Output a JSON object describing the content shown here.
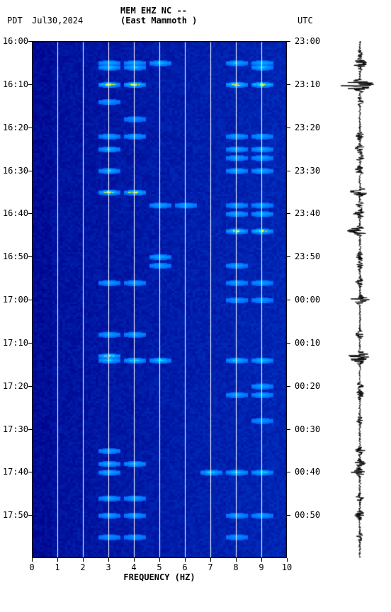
{
  "header": {
    "tz_left": "PDT",
    "date": "Jul30,2024",
    "station": "MEM EHZ NC --",
    "location": "(East Mammoth )",
    "tz_right": "UTC"
  },
  "spectrogram": {
    "type": "heatmap",
    "xlim": [
      0,
      10
    ],
    "ylim_left_minutes": [
      0,
      120
    ],
    "xlabel": "FREQUENCY (HZ)",
    "xticks": [
      0,
      1,
      2,
      3,
      4,
      5,
      6,
      7,
      8,
      9,
      10
    ],
    "left_time_labels": [
      "16:00",
      "16:10",
      "16:20",
      "16:30",
      "16:40",
      "16:50",
      "17:00",
      "17:10",
      "17:20",
      "17:30",
      "17:40",
      "17:50"
    ],
    "right_time_labels": [
      "23:00",
      "23:10",
      "23:20",
      "23:30",
      "23:40",
      "23:50",
      "00:00",
      "00:10",
      "00:20",
      "00:30",
      "00:40",
      "00:50"
    ],
    "background_color": "#0000aa",
    "low_color": "#000088",
    "mid_color": "#0066ff",
    "high_color": "#00ffff",
    "hot_color": "#ffff00",
    "hottest_color": "#ff3300",
    "grid_color": "#ffffff",
    "grid_width": 1,
    "axis_color": "#000000",
    "nx": 10,
    "ny": 120,
    "events": [
      {
        "t": 5,
        "freqs": [
          3,
          4,
          5,
          8,
          9
        ],
        "intensity": 0.6
      },
      {
        "t": 6,
        "freqs": [
          3,
          4,
          9
        ],
        "intensity": 0.7
      },
      {
        "t": 10,
        "freqs": [
          3,
          4,
          8,
          9
        ],
        "intensity": 0.95,
        "hot": true
      },
      {
        "t": 14,
        "freqs": [
          3
        ],
        "intensity": 0.4
      },
      {
        "t": 18,
        "freqs": [
          4
        ],
        "intensity": 0.3
      },
      {
        "t": 22,
        "freqs": [
          3,
          4,
          8,
          9
        ],
        "intensity": 0.5
      },
      {
        "t": 25,
        "freqs": [
          3,
          8,
          9
        ],
        "intensity": 0.6
      },
      {
        "t": 27,
        "freqs": [
          8,
          9
        ],
        "intensity": 0.5
      },
      {
        "t": 30,
        "freqs": [
          3,
          8,
          9
        ],
        "intensity": 0.6
      },
      {
        "t": 35,
        "freqs": [
          3,
          4
        ],
        "intensity": 0.85,
        "hot": true
      },
      {
        "t": 38,
        "freqs": [
          5,
          6,
          8,
          9
        ],
        "intensity": 0.5
      },
      {
        "t": 40,
        "freqs": [
          8,
          9
        ],
        "intensity": 0.6
      },
      {
        "t": 44,
        "freqs": [
          8,
          9
        ],
        "intensity": 0.9,
        "hot": true
      },
      {
        "t": 50,
        "freqs": [
          5
        ],
        "intensity": 0.6
      },
      {
        "t": 52,
        "freqs": [
          5,
          8
        ],
        "intensity": 0.5
      },
      {
        "t": 56,
        "freqs": [
          3,
          4,
          8,
          9
        ],
        "intensity": 0.5
      },
      {
        "t": 60,
        "freqs": [
          8,
          9
        ],
        "intensity": 0.4
      },
      {
        "t": 68,
        "freqs": [
          3,
          4
        ],
        "intensity": 0.5
      },
      {
        "t": 73,
        "freqs": [
          3
        ],
        "intensity": 0.9,
        "hot": true
      },
      {
        "t": 74,
        "freqs": [
          3,
          4,
          5,
          8,
          9
        ],
        "intensity": 0.7
      },
      {
        "t": 80,
        "freqs": [
          9
        ],
        "intensity": 0.5
      },
      {
        "t": 82,
        "freqs": [
          8,
          9
        ],
        "intensity": 0.5
      },
      {
        "t": 88,
        "freqs": [
          9
        ],
        "intensity": 0.4
      },
      {
        "t": 95,
        "freqs": [
          3
        ],
        "intensity": 0.5
      },
      {
        "t": 98,
        "freqs": [
          3,
          4
        ],
        "intensity": 0.6
      },
      {
        "t": 100,
        "freqs": [
          3,
          7,
          8,
          9
        ],
        "intensity": 0.7
      },
      {
        "t": 106,
        "freqs": [
          3,
          4
        ],
        "intensity": 0.5
      },
      {
        "t": 110,
        "freqs": [
          3,
          4,
          8,
          9
        ],
        "intensity": 0.5
      },
      {
        "t": 115,
        "freqs": [
          3,
          4,
          8
        ],
        "intensity": 0.4
      }
    ]
  },
  "waveform": {
    "color": "#000000",
    "background": "#ffffff",
    "baseline_x": 0.5,
    "peaks": [
      {
        "t": 3,
        "amp": 0.1
      },
      {
        "t": 5,
        "amp": 0.3
      },
      {
        "t": 6,
        "amp": 0.2
      },
      {
        "t": 10,
        "amp": 0.95
      },
      {
        "t": 11,
        "amp": 0.4
      },
      {
        "t": 14,
        "amp": 0.15
      },
      {
        "t": 22,
        "amp": 0.2
      },
      {
        "t": 25,
        "amp": 0.25
      },
      {
        "t": 27,
        "amp": 0.2
      },
      {
        "t": 30,
        "amp": 0.3
      },
      {
        "t": 35,
        "amp": 0.5
      },
      {
        "t": 38,
        "amp": 0.2
      },
      {
        "t": 40,
        "amp": 0.3
      },
      {
        "t": 44,
        "amp": 0.7
      },
      {
        "t": 50,
        "amp": 0.2
      },
      {
        "t": 52,
        "amp": 0.15
      },
      {
        "t": 56,
        "amp": 0.2
      },
      {
        "t": 60,
        "amp": 0.45
      },
      {
        "t": 68,
        "amp": 0.2
      },
      {
        "t": 73,
        "amp": 0.5
      },
      {
        "t": 74,
        "amp": 0.3
      },
      {
        "t": 80,
        "amp": 0.15
      },
      {
        "t": 82,
        "amp": 0.2
      },
      {
        "t": 88,
        "amp": 0.15
      },
      {
        "t": 95,
        "amp": 0.2
      },
      {
        "t": 98,
        "amp": 0.25
      },
      {
        "t": 100,
        "amp": 0.4
      },
      {
        "t": 106,
        "amp": 0.2
      },
      {
        "t": 110,
        "amp": 0.25
      },
      {
        "t": 115,
        "amp": 0.15
      }
    ]
  }
}
